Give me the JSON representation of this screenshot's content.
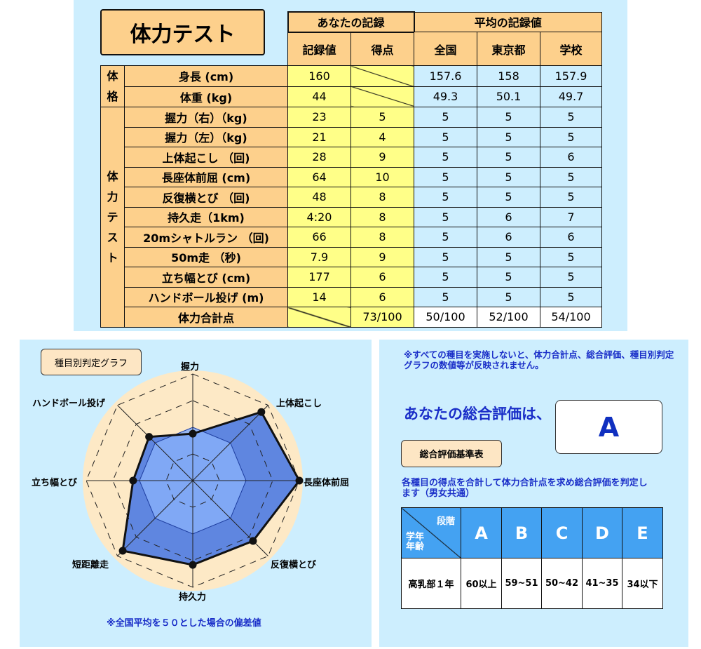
{
  "title": "体力テスト",
  "table": {
    "group_your": "あなたの記録",
    "group_avg": "平均の記録値",
    "cols": [
      "記録値",
      "得点",
      "全国",
      "東京都",
      "学校"
    ],
    "group_body": [
      "体",
      "格"
    ],
    "group_fitness": [
      "体",
      "力",
      "テ",
      "ス",
      "ト"
    ],
    "body_rows": [
      {
        "item": "身長 (cm)",
        "value": "160",
        "national": "157.6",
        "tokyo": "158",
        "school": "157.9"
      },
      {
        "item": "体重 (kg)",
        "value": "44",
        "national": "49.3",
        "tokyo": "50.1",
        "school": "49.7"
      }
    ],
    "fitness_rows": [
      {
        "item": "握力（右）（kg)",
        "value": "23",
        "score": "5",
        "national": "5",
        "tokyo": "5",
        "school": "5"
      },
      {
        "item": "握力（左）（kg)",
        "value": "21",
        "score": "4",
        "national": "5",
        "tokyo": "5",
        "school": "5"
      },
      {
        "item": "上体起こし （回)",
        "value": "28",
        "score": "9",
        "national": "5",
        "tokyo": "5",
        "school": "6"
      },
      {
        "item": "長座体前屈 (cm)",
        "value": "64",
        "score": "10",
        "national": "5",
        "tokyo": "5",
        "school": "5"
      },
      {
        "item": "反復横とび （回)",
        "value": "48",
        "score": "8",
        "national": "5",
        "tokyo": "5",
        "school": "5"
      },
      {
        "item": "持久走（1km)",
        "value": "4:20",
        "score": "8",
        "national": "5",
        "tokyo": "6",
        "school": "7"
      },
      {
        "item": "20mシャトルラン （回)",
        "value": "66",
        "score": "8",
        "national": "5",
        "tokyo": "6",
        "school": "6"
      },
      {
        "item": "50m走 （秒)",
        "value": "7.9",
        "score": "9",
        "national": "5",
        "tokyo": "5",
        "school": "5"
      },
      {
        "item": "立ち幅とび (cm)",
        "value": "177",
        "score": "6",
        "national": "5",
        "tokyo": "5",
        "school": "5"
      },
      {
        "item": "ハンドボール投げ (m)",
        "value": "14",
        "score": "6",
        "national": "5",
        "tokyo": "5",
        "school": "5"
      }
    ],
    "total": {
      "item": "体力合計点",
      "score": "73/100",
      "national": "50/100",
      "tokyo": "52/100",
      "school": "54/100"
    }
  },
  "radar": {
    "title": "種目別判定グラフ",
    "footnote": "※全国平均を５０とした場合の偏差値",
    "chart_data": {
      "type": "radar",
      "axes": [
        "握力",
        "上体起こし",
        "長座体前屈",
        "反復横とび",
        "持久力",
        "短距離走",
        "立ち幅とび",
        "ハンドボール投げ"
      ],
      "values_fraction_of_max": [
        0.44,
        0.91,
        1.0,
        0.8,
        0.79,
        0.93,
        0.56,
        0.58
      ],
      "rings": 4
    },
    "colors": {
      "fill": "#5f86e0",
      "inner": "#86aef8",
      "bg": "#fde9c6"
    }
  },
  "result": {
    "note": "※すべての種目を実施しないと、体力合計点、総合評価、種目別判定グラフの数値等が反映されません。",
    "heading": "あなたの総合評価は、",
    "grade": "A",
    "criteria_button": "総合評価基準表",
    "desc": "各種目の得点を合計して体力合計点を求め総合評価を判定します（男女共通）",
    "criteria": {
      "corner_top": "段階",
      "corner_bottom": "学年\n年齢",
      "grades": [
        "A",
        "B",
        "C",
        "D",
        "E"
      ],
      "row_label": "高乳部１年",
      "ranges": [
        "60以上",
        "59~51",
        "50~42",
        "41~35",
        "34以下"
      ]
    }
  }
}
